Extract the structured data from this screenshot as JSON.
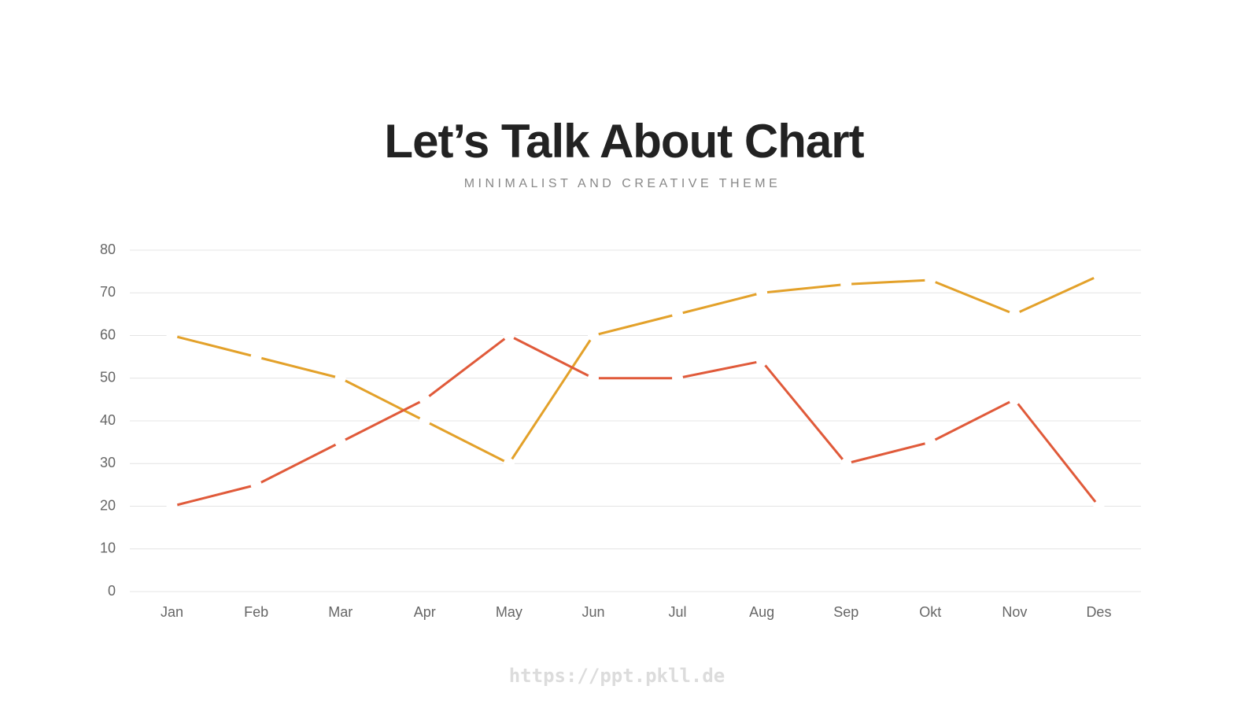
{
  "chart_data": {
    "type": "line",
    "title": "Let’s Talk About Chart",
    "subtitle": "MINIMALIST AND CREATIVE THEME",
    "watermark": "https://ppt.pkll.de",
    "categories": [
      "Jan",
      "Feb",
      "Mar",
      "Apr",
      "May",
      "Jun",
      "Jul",
      "Aug",
      "Sep",
      "Okt",
      "Nov",
      "Des"
    ],
    "series": [
      {
        "color": "#e3a12a",
        "values": [
          60,
          55,
          50,
          40,
          30,
          60,
          65,
          70,
          72,
          73,
          65,
          74
        ]
      },
      {
        "color": "#e05a3a",
        "values": [
          20,
          25,
          35,
          45,
          60,
          50,
          50,
          54,
          30,
          35,
          45,
          20
        ]
      }
    ],
    "ylim": [
      0,
      80
    ],
    "yticks": [
      0,
      10,
      20,
      30,
      40,
      50,
      60,
      70,
      80
    ],
    "grid": true
  }
}
